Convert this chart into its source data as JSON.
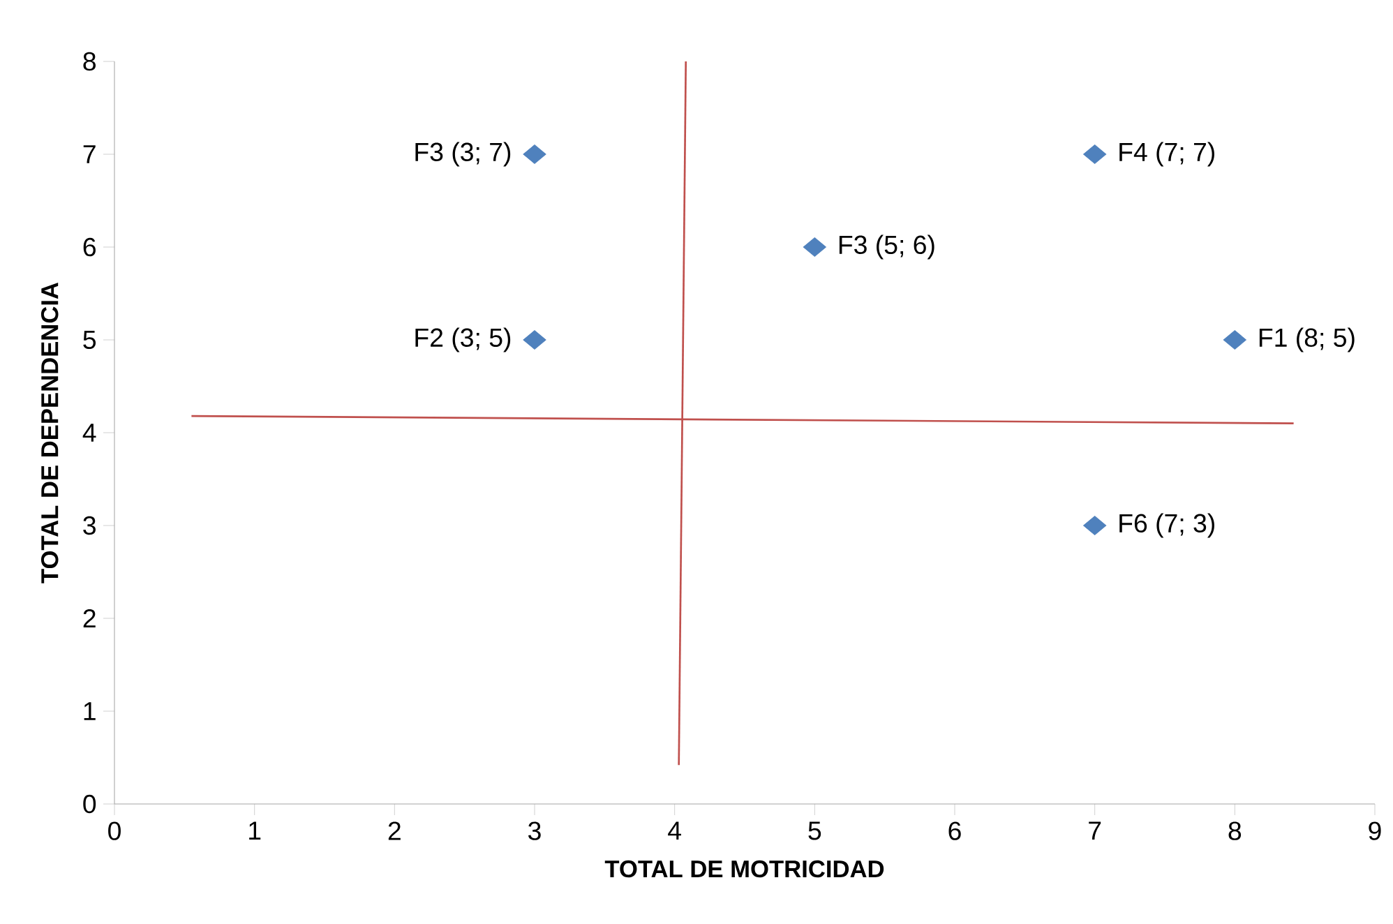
{
  "chart_data": {
    "type": "scatter",
    "xlabel": "TOTAL DE  MOTRICIDAD",
    "ylabel": "TOTAL DE DEPENDENCIA",
    "xlim": [
      0,
      9
    ],
    "ylim": [
      0,
      8
    ],
    "xticks": [
      0,
      1,
      2,
      3,
      4,
      5,
      6,
      7,
      8,
      9
    ],
    "yticks": [
      0,
      1,
      2,
      3,
      4,
      5,
      6,
      7,
      8
    ],
    "grid": false,
    "marker": "diamond",
    "series": [
      {
        "color": "#4f81bd",
        "x": [
          3,
          3,
          5,
          7,
          8,
          7
        ],
        "values": [
          7,
          5,
          6,
          7,
          5,
          3
        ]
      },
      {
        "type": "line",
        "color": "#c0504d",
        "marker": "none",
        "line_style": "solid",
        "x": [
          0.55,
          8.42
        ],
        "values": [
          4.18,
          4.1
        ]
      },
      {
        "type": "line",
        "color": "#c0504d",
        "marker": "none",
        "line_style": "solid",
        "x": [
          4.08,
          4.03
        ],
        "values": [
          8,
          0.42
        ]
      }
    ],
    "annotations": [
      {
        "text": "F3 (3; 7)",
        "x": 3,
        "y": 7
      },
      {
        "text": "F2 (3; 5)",
        "x": 3,
        "y": 5
      },
      {
        "text": "F3 (5; 6)",
        "x": 5,
        "y": 6
      },
      {
        "text": "F4 (7; 7)",
        "x": 7,
        "y": 7
      },
      {
        "text": "F1 (8; 5)",
        "x": 8,
        "y": 5
      },
      {
        "text": "F6 (7; 3)",
        "x": 7,
        "y": 3
      }
    ]
  }
}
